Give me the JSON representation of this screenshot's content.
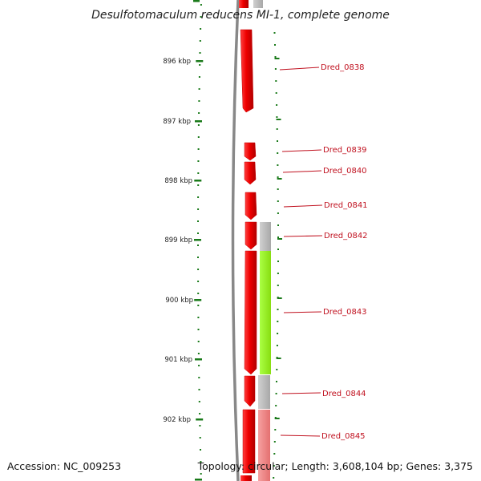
{
  "title": "Desulfotomaculum reducens MI-1, complete genome",
  "accession": "Accession: NC_009253",
  "summary": "Topology: circular; Length: 3,608,104 bp; Genes: 3,375",
  "kbp_ticks": [
    "896 kbp",
    "897 kbp",
    "898 kbp",
    "899 kbp",
    "900 kbp",
    "901 kbp",
    "902 kbp"
  ],
  "genes": [
    {
      "name": "Dred_0838",
      "color": "#ee0000"
    },
    {
      "name": "Dred_0839",
      "color": "#ee0000"
    },
    {
      "name": "Dred_0840",
      "color": "#ee0000"
    },
    {
      "name": "Dred_0841",
      "color": "#ee0000"
    },
    {
      "name": "Dred_0842",
      "color": "#ee0000"
    },
    {
      "name": "Dred_0843",
      "color": "#ee0000"
    },
    {
      "name": "Dred_0844",
      "color": "#ee0000"
    },
    {
      "name": "Dred_0845",
      "color": "#ee0000"
    }
  ],
  "cog_colors": {
    "gray": "#b8b8b8",
    "green": "#99ee22",
    "pink": "#f08080"
  },
  "colors": {
    "backbone": "#888888",
    "tick": "#1a7a1a",
    "label": "#c0111f"
  }
}
